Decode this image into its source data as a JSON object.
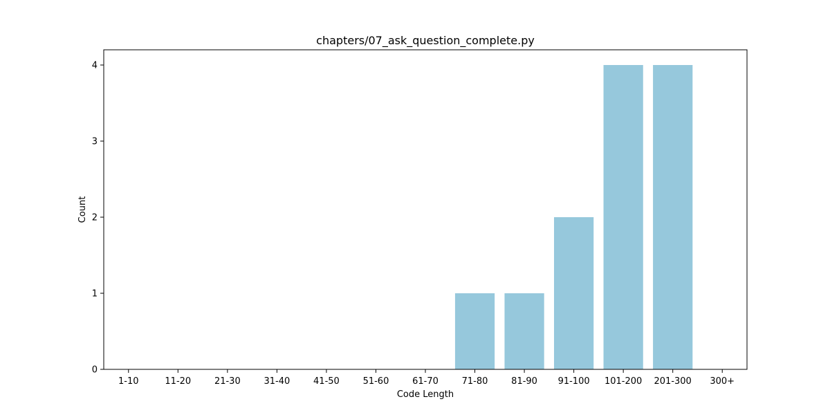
{
  "chart_data": {
    "type": "bar",
    "title": "chapters/07_ask_question_complete.py",
    "xlabel": "Code Length",
    "ylabel": "Count",
    "categories": [
      "1-10",
      "11-20",
      "21-30",
      "31-40",
      "41-50",
      "51-60",
      "61-70",
      "71-80",
      "81-90",
      "91-100",
      "101-200",
      "201-300",
      "300+"
    ],
    "values": [
      0,
      0,
      0,
      0,
      0,
      0,
      0,
      1,
      1,
      2,
      4,
      4,
      0
    ],
    "ylim": [
      0,
      4.2
    ],
    "yticks": [
      "0",
      "1",
      "2",
      "3",
      "4"
    ],
    "grid": false,
    "bar_color": "#96c8dc"
  }
}
